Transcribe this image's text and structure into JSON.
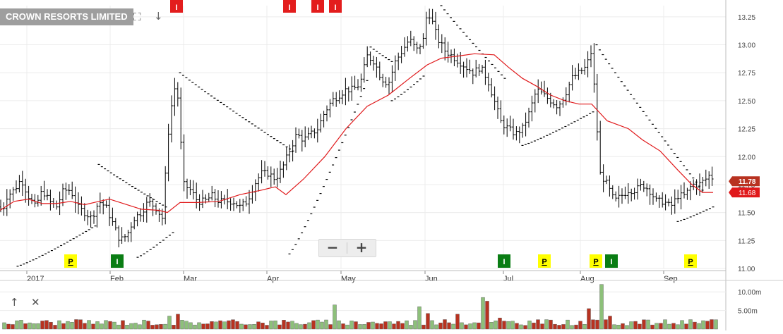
{
  "header": {
    "title": "CROWN RESORTS LIMITED",
    "expand_icon": "expand-icon",
    "download_icon": "arrow-down-icon"
  },
  "zoom": {
    "minus_label": "−",
    "plus_label": "+"
  },
  "volume_tools": {
    "up_icon": "arrow-up-icon",
    "close_icon": "close-icon"
  },
  "colors": {
    "price_bar": "#000000",
    "moving_average": "#e0191b",
    "volume_up": "#8dc07a",
    "volume_down": "#b83220",
    "last_price_badge": "#b83220",
    "ma_badge": "#e0191b",
    "marker_P": "#ffff00",
    "marker_I_green": "#0a7d14",
    "marker_I_red": "#e31d1d"
  },
  "chart_data": [
    {
      "type": "ohlc",
      "series_name": "",
      "x_ticks": [
        "2017",
        "Feb",
        "Mar",
        "Apr",
        "May",
        "Jun",
        "Jul",
        "Aug",
        "Sep"
      ],
      "y_ticks": [
        "11.00",
        "11.25",
        "11.50",
        "11.75",
        "12.00",
        "12.25",
        "12.50",
        "12.75",
        "13.00",
        "13.25"
      ],
      "ylim": [
        11.0,
        13.35
      ],
      "last_price_label": "11.78",
      "ma_value_label": "11.68",
      "close_path": [
        [
          0,
          11.55
        ],
        [
          3,
          11.5
        ],
        [
          10,
          11.65
        ],
        [
          20,
          11.7
        ],
        [
          30,
          11.8
        ],
        [
          40,
          11.65
        ],
        [
          50,
          11.55
        ],
        [
          60,
          11.7
        ],
        [
          70,
          11.6
        ],
        [
          80,
          11.55
        ],
        [
          90,
          11.7
        ],
        [
          100,
          11.7
        ],
        [
          110,
          11.55
        ],
        [
          120,
          11.5
        ],
        [
          130,
          11.45
        ],
        [
          140,
          11.6
        ],
        [
          150,
          11.55
        ],
        [
          160,
          11.4
        ],
        [
          170,
          11.25
        ],
        [
          180,
          11.3
        ],
        [
          190,
          11.45
        ],
        [
          200,
          11.5
        ],
        [
          210,
          11.6
        ],
        [
          220,
          11.55
        ],
        [
          230,
          11.45
        ],
        [
          240,
          12.35
        ],
        [
          250,
          12.7
        ],
        [
          260,
          11.75
        ],
        [
          270,
          11.7
        ],
        [
          280,
          11.6
        ],
        [
          290,
          11.6
        ],
        [
          300,
          11.65
        ],
        [
          310,
          11.6
        ],
        [
          320,
          11.6
        ],
        [
          330,
          11.6
        ],
        [
          340,
          11.55
        ],
        [
          350,
          11.6
        ],
        [
          360,
          11.75
        ],
        [
          370,
          11.85
        ],
        [
          380,
          11.85
        ],
        [
          390,
          11.8
        ],
        [
          400,
          11.9
        ],
        [
          410,
          12.05
        ],
        [
          420,
          12.2
        ],
        [
          430,
          12.15
        ],
        [
          440,
          12.2
        ],
        [
          450,
          12.25
        ],
        [
          460,
          12.4
        ],
        [
          470,
          12.5
        ],
        [
          480,
          12.55
        ],
        [
          490,
          12.6
        ],
        [
          500,
          12.6
        ],
        [
          510,
          12.65
        ],
        [
          520,
          12.9
        ],
        [
          530,
          12.85
        ],
        [
          540,
          12.7
        ],
        [
          550,
          12.65
        ],
        [
          560,
          12.85
        ],
        [
          570,
          12.95
        ],
        [
          580,
          13.05
        ],
        [
          590,
          12.95
        ],
        [
          600,
          13.05
        ],
        [
          605,
          13.3
        ],
        [
          610,
          13.25
        ],
        [
          620,
          13.05
        ],
        [
          630,
          12.95
        ],
        [
          640,
          12.9
        ],
        [
          650,
          12.85
        ],
        [
          660,
          12.8
        ],
        [
          670,
          12.75
        ],
        [
          680,
          12.8
        ],
        [
          690,
          12.7
        ],
        [
          700,
          12.5
        ],
        [
          710,
          12.3
        ],
        [
          720,
          12.25
        ],
        [
          730,
          12.2
        ],
        [
          740,
          12.25
        ],
        [
          750,
          12.4
        ],
        [
          760,
          12.6
        ],
        [
          770,
          12.55
        ],
        [
          780,
          12.5
        ],
        [
          790,
          12.45
        ],
        [
          800,
          12.55
        ],
        [
          810,
          12.7
        ],
        [
          820,
          12.75
        ],
        [
          830,
          12.8
        ],
        [
          838,
          12.95
        ],
        [
          845,
          12.3
        ],
        [
          850,
          11.85
        ],
        [
          860,
          11.75
        ],
        [
          870,
          11.6
        ],
        [
          880,
          11.65
        ],
        [
          890,
          11.7
        ],
        [
          900,
          11.7
        ],
        [
          910,
          11.75
        ],
        [
          920,
          11.7
        ],
        [
          930,
          11.6
        ],
        [
          940,
          11.6
        ],
        [
          950,
          11.55
        ],
        [
          960,
          11.65
        ],
        [
          970,
          11.65
        ],
        [
          980,
          11.75
        ],
        [
          990,
          11.75
        ],
        [
          1000,
          11.8
        ],
        [
          1007,
          11.85
        ],
        [
          1010,
          11.78
        ]
      ],
      "moving_average_path": [
        [
          0,
          11.52
        ],
        [
          20,
          11.6
        ],
        [
          40,
          11.62
        ],
        [
          60,
          11.58
        ],
        [
          80,
          11.58
        ],
        [
          100,
          11.6
        ],
        [
          120,
          11.57
        ],
        [
          140,
          11.6
        ],
        [
          155,
          11.62
        ],
        [
          175,
          11.58
        ],
        [
          200,
          11.53
        ],
        [
          225,
          11.52
        ],
        [
          237,
          11.5
        ],
        [
          255,
          11.59
        ],
        [
          280,
          11.59
        ],
        [
          310,
          11.6
        ],
        [
          340,
          11.66
        ],
        [
          370,
          11.7
        ],
        [
          390,
          11.73
        ],
        [
          405,
          11.66
        ],
        [
          430,
          11.8
        ],
        [
          460,
          12.0
        ],
        [
          490,
          12.25
        ],
        [
          520,
          12.45
        ],
        [
          550,
          12.55
        ],
        [
          580,
          12.7
        ],
        [
          605,
          12.82
        ],
        [
          625,
          12.88
        ],
        [
          650,
          12.9
        ],
        [
          672,
          12.92
        ],
        [
          700,
          12.91
        ],
        [
          720,
          12.8
        ],
        [
          740,
          12.7
        ],
        [
          760,
          12.63
        ],
        [
          780,
          12.55
        ],
        [
          800,
          12.5
        ],
        [
          820,
          12.47
        ],
        [
          838,
          12.47
        ],
        [
          860,
          12.32
        ],
        [
          890,
          12.25
        ],
        [
          910,
          12.15
        ],
        [
          935,
          12.05
        ],
        [
          960,
          11.88
        ],
        [
          980,
          11.75
        ],
        [
          995,
          11.68
        ],
        [
          1010,
          11.68
        ]
      ],
      "sar_segments": [
        {
          "from": [
            25,
            11.02
          ],
          "to": [
            135,
            11.38
          ],
          "direction": "up"
        },
        {
          "from": [
            140,
            11.93
          ],
          "to": [
            235,
            11.55
          ],
          "direction": "down"
        },
        {
          "from": [
            195,
            11.1
          ],
          "to": [
            245,
            11.32
          ],
          "direction": "up"
        },
        {
          "from": [
            255,
            12.75
          ],
          "to": [
            415,
            12.05
          ],
          "direction": "down"
        },
        {
          "from": [
            410,
            11.13
          ],
          "to": [
            520,
            12.68
          ],
          "direction": "up"
        },
        {
          "from": [
            525,
            12.98
          ],
          "to": [
            555,
            12.85
          ],
          "direction": "down"
        },
        {
          "from": [
            555,
            12.5
          ],
          "to": [
            600,
            12.72
          ],
          "direction": "up"
        },
        {
          "from": [
            625,
            13.35
          ],
          "to": [
            715,
            12.7
          ],
          "direction": "down"
        },
        {
          "from": [
            740,
            12.1
          ],
          "to": [
            840,
            12.4
          ],
          "direction": "up"
        },
        {
          "from": [
            845,
            13.0
          ],
          "to": [
            995,
            11.7
          ],
          "direction": "down"
        },
        {
          "from": [
            960,
            11.42
          ],
          "to": [
            1010,
            11.55
          ],
          "direction": "up"
        }
      ],
      "signal_markers": [
        {
          "type": "I",
          "color": "red",
          "x": 250,
          "position": "top"
        },
        {
          "type": "I",
          "color": "red",
          "x": 410,
          "position": "top"
        },
        {
          "type": "I",
          "color": "red",
          "x": 450,
          "position": "top"
        },
        {
          "type": "I",
          "color": "red",
          "x": 475,
          "position": "top"
        },
        {
          "type": "P",
          "color": "yellow",
          "x": 100,
          "position": "bottom"
        },
        {
          "type": "I",
          "color": "green",
          "x": 166,
          "position": "bottom"
        },
        {
          "type": "I",
          "color": "green",
          "x": 714,
          "position": "bottom"
        },
        {
          "type": "P",
          "color": "yellow",
          "x": 771,
          "position": "bottom"
        },
        {
          "type": "P",
          "color": "yellow",
          "x": 844,
          "position": "bottom"
        },
        {
          "type": "I",
          "color": "green",
          "x": 866,
          "position": "bottom"
        },
        {
          "type": "P",
          "color": "yellow",
          "x": 978,
          "position": "bottom"
        }
      ]
    },
    {
      "type": "bar",
      "series_name": "",
      "y_ticks": [
        "5.00m",
        "10.00m"
      ],
      "ylim": [
        0,
        12.5
      ],
      "bar_count": 170,
      "base_volume_m": 1.8,
      "spikes": [
        {
          "x": 238,
          "value": 3.5,
          "color": "up"
        },
        {
          "x": 250,
          "value": 4.0,
          "color": "down"
        },
        {
          "x": 472,
          "value": 6.5,
          "color": "up"
        },
        {
          "x": 596,
          "value": 6.0,
          "color": "up"
        },
        {
          "x": 608,
          "value": 4.2,
          "color": "down"
        },
        {
          "x": 648,
          "value": 4.0,
          "color": "down"
        },
        {
          "x": 686,
          "value": 8.5,
          "color": "up"
        },
        {
          "x": 692,
          "value": 7.5,
          "color": "down"
        },
        {
          "x": 710,
          "value": 3.0,
          "color": "down"
        },
        {
          "x": 836,
          "value": 5.5,
          "color": "down"
        },
        {
          "x": 854,
          "value": 12.0,
          "color": "up"
        },
        {
          "x": 862,
          "value": 3.5,
          "color": "down"
        }
      ]
    }
  ]
}
